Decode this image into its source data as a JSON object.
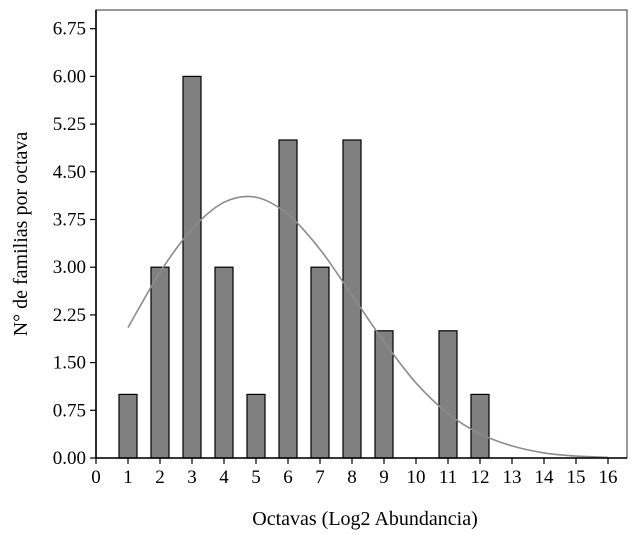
{
  "chart_data": {
    "type": "bar",
    "title": "",
    "xlabel": "Octavas (Log2 Abundancia)",
    "ylabel": "N° de familias por octava",
    "x_ticks": [
      "0",
      "1",
      "2",
      "3",
      "4",
      "5",
      "6",
      "7",
      "8",
      "9",
      "10",
      "11",
      "12",
      "13",
      "14",
      "15",
      "16"
    ],
    "y_ticks": [
      "0.00",
      "0.75",
      "1.50",
      "2.25",
      "3.00",
      "3.75",
      "4.50",
      "5.25",
      "6.00",
      "6.75"
    ],
    "xlim": [
      0,
      16.6
    ],
    "ylim": [
      0,
      6.9
    ],
    "categories": [
      1,
      2,
      3,
      4,
      5,
      6,
      7,
      8,
      9,
      10,
      11,
      12,
      13,
      14,
      15,
      16
    ],
    "values": [
      1,
      3,
      6,
      3,
      1,
      5,
      3,
      5,
      2,
      0,
      2,
      1,
      0,
      0,
      0,
      0
    ],
    "bar_color": "#808080",
    "bar_edge_color": "#000000",
    "curve_color": "#8c8c8c",
    "fitted_curve": {
      "type": "normal",
      "x": [
        1,
        2,
        3,
        4,
        5,
        6,
        7,
        8,
        9,
        10,
        11,
        12,
        13,
        14,
        15,
        16
      ],
      "y": [
        2.05,
        2.92,
        3.6,
        4.02,
        4.1,
        3.83,
        3.28,
        2.56,
        1.83,
        1.18,
        0.7,
        0.38,
        0.19,
        0.08,
        0.03,
        0.01
      ]
    },
    "grid": false
  }
}
